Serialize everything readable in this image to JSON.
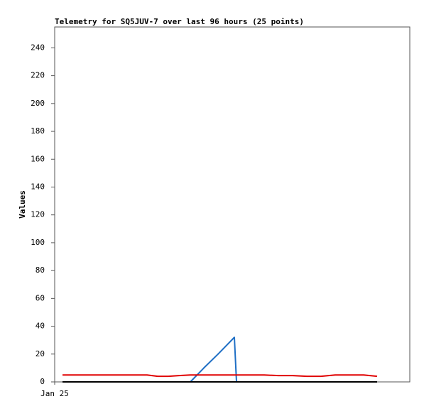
{
  "chart_data": {
    "type": "line",
    "title": "Telemetry for SQ5JUV-7 over last 96 hours (25 points)",
    "y_label": "Values",
    "x": [
      2.2,
      6,
      10,
      14,
      18,
      22,
      26,
      29,
      32,
      35,
      38.2,
      42,
      46,
      50.6,
      51.2,
      55,
      59,
      63,
      67,
      71,
      75,
      79,
      83,
      87,
      90.8
    ],
    "xlim": [
      0,
      100
    ],
    "xticks": [
      {
        "value": 0,
        "label": "Jan 25"
      }
    ],
    "ylim": [
      0,
      255
    ],
    "yticks": [
      0,
      20,
      40,
      60,
      80,
      100,
      120,
      140,
      160,
      180,
      200,
      220,
      240
    ],
    "grid": false,
    "series": [
      {
        "color": "#1f6fc5",
        "values": [
          0,
          0,
          0,
          0,
          0,
          0,
          0,
          0,
          0,
          0,
          0,
          10,
          20,
          32,
          0,
          0,
          0,
          0,
          0,
          0,
          0,
          0,
          0,
          0,
          0
        ]
      },
      {
        "color": "#000000",
        "values": [
          0,
          0,
          0,
          0,
          0,
          0,
          0,
          0,
          0,
          0,
          0,
          0,
          0,
          0,
          0,
          0,
          0,
          0,
          0,
          0,
          0,
          0,
          0,
          0,
          0
        ]
      },
      {
        "color": "#e00000",
        "values": [
          5,
          5,
          5,
          5,
          5,
          5,
          5,
          4,
          4,
          4.5,
          5,
          5,
          5,
          5,
          5,
          5,
          5,
          4.5,
          4.5,
          4,
          4,
          5,
          5,
          5,
          4
        ]
      }
    ]
  }
}
